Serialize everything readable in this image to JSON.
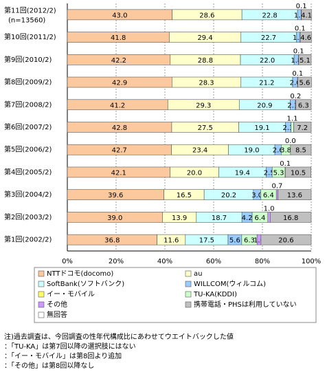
{
  "chart_data": {
    "type": "stacked-bar-horizontal",
    "categories": [
      "第11回(2012/2)",
      "第10回(2011/2)",
      "第9回(2010/2)",
      "第8回(2009/2)",
      "第7回(2008/2)",
      "第6回(2007/2)",
      "第5回(2006/2)",
      "第4回(2005/2)",
      "第3回(2004/2)",
      "第2回(2003/2)",
      "第1回(2002/2)"
    ],
    "category_note": "(n=13560)",
    "series": [
      {
        "name": "NTTドコモ(docomo)",
        "color": "#fcc99e",
        "values": [
          43.0,
          41.8,
          42.2,
          42.9,
          41.2,
          42.8,
          42.7,
          42.1,
          39.6,
          39.0,
          36.8
        ],
        "value_labels": [
          "43.0",
          "41.8",
          "42.2",
          "42.9",
          "41.2",
          "42.8",
          "42.7",
          "42.1",
          "39.6",
          "39.0",
          "36.8"
        ]
      },
      {
        "name": "au",
        "color": "#ffffcc",
        "values": [
          28.6,
          29.4,
          28.8,
          28.3,
          29.3,
          27.5,
          23.4,
          20.0,
          16.5,
          13.9,
          11.6
        ],
        "value_labels": [
          "28.6",
          "29.4",
          "28.8",
          "28.3",
          "29.3",
          "27.5",
          "23.4",
          "20.0",
          "16.5",
          "13.9",
          "11.6"
        ]
      },
      {
        "name": "SoftBank(ソフトバンク)",
        "color": "#ccffff",
        "values": [
          22.8,
          22.7,
          22.0,
          21.2,
          20.9,
          19.1,
          19.0,
          19.4,
          20.2,
          18.7,
          17.5
        ],
        "value_labels": [
          "22.8",
          "22.7",
          "22.0",
          "21.2",
          "20.9",
          "19.1",
          "19.0",
          "19.4",
          "20.2",
          "18.7",
          "17.5"
        ]
      },
      {
        "name": "WILLCOM(ウィルコム)",
        "color": "#99ccff",
        "values": [
          1.5,
          1.5,
          1.8,
          2.0,
          2.1,
          2.3,
          2.6,
          2.5,
          3.0,
          4.2,
          5.6
        ],
        "value_labels": [
          "1.5",
          "1.5",
          "1.8",
          "2.0",
          "2.1",
          "2.3",
          "2.6",
          "2.5",
          "3.0",
          "4.2",
          "5.6"
        ]
      },
      {
        "name": "イー・モバイル",
        "color": "#ffff66",
        "values": [
          0.1,
          0.1,
          0.1,
          0.1,
          null,
          null,
          null,
          null,
          null,
          null,
          null
        ],
        "value_labels": [
          "0.1",
          "0.1",
          "0.1",
          "0.1",
          null,
          null,
          null,
          null,
          null,
          null,
          null
        ]
      },
      {
        "name": "TU-KA(KDDI)",
        "color": "#ccffcc",
        "values": [
          null,
          null,
          null,
          null,
          null,
          1.1,
          3.8,
          5.3,
          6.4,
          6.4,
          6.3
        ],
        "value_labels": [
          null,
          null,
          null,
          null,
          null,
          "1.1",
          "3.8",
          "5.3",
          "6.4",
          "6.4",
          "6.3"
        ]
      },
      {
        "name": "その他",
        "color": "#cc99ff",
        "values": [
          null,
          null,
          null,
          null,
          0.2,
          null,
          0.0,
          0.1,
          0.7,
          1.0,
          1.6
        ],
        "value_labels": [
          null,
          null,
          null,
          null,
          "0.2",
          null,
          "0.0",
          "0.1",
          "0.7",
          "1.0",
          "1.6"
        ]
      },
      {
        "name": "携帯電話・PHSは利用していない",
        "color": "#c0c0c0",
        "values": [
          4.1,
          4.6,
          5.1,
          5.6,
          6.3,
          7.2,
          8.5,
          10.5,
          13.6,
          16.8,
          20.6
        ],
        "value_labels": [
          "4.1",
          "4.6",
          "5.1",
          "5.6",
          "6.3",
          "7.2",
          "8.5",
          "10.5",
          "13.6",
          "16.8",
          "20.6"
        ]
      },
      {
        "name": "無回答",
        "color": "#ffffff",
        "values": [
          null,
          null,
          null,
          null,
          null,
          null,
          null,
          null,
          null,
          null,
          null
        ],
        "value_labels": [
          null,
          null,
          null,
          null,
          null,
          null,
          null,
          null,
          null,
          null,
          null
        ]
      }
    ],
    "xlim": [
      0,
      100
    ],
    "xticks": [
      {
        "value": 0,
        "label": "0%"
      },
      {
        "value": 20,
        "label": "20%"
      },
      {
        "value": 40,
        "label": "40%"
      },
      {
        "value": 60,
        "label": "60%"
      },
      {
        "value": 80,
        "label": "80%"
      },
      {
        "value": 100,
        "label": "100%"
      }
    ],
    "notes": [
      "注)過去調査は、今回調査の性年代構成比にあわせてウエイトバックした値",
      "：「TU-KA」は第7回以降の選択肢にはない",
      "：「イー・モバイル」は第8回より追加",
      "：「その他」は第8回以降なし"
    ]
  }
}
